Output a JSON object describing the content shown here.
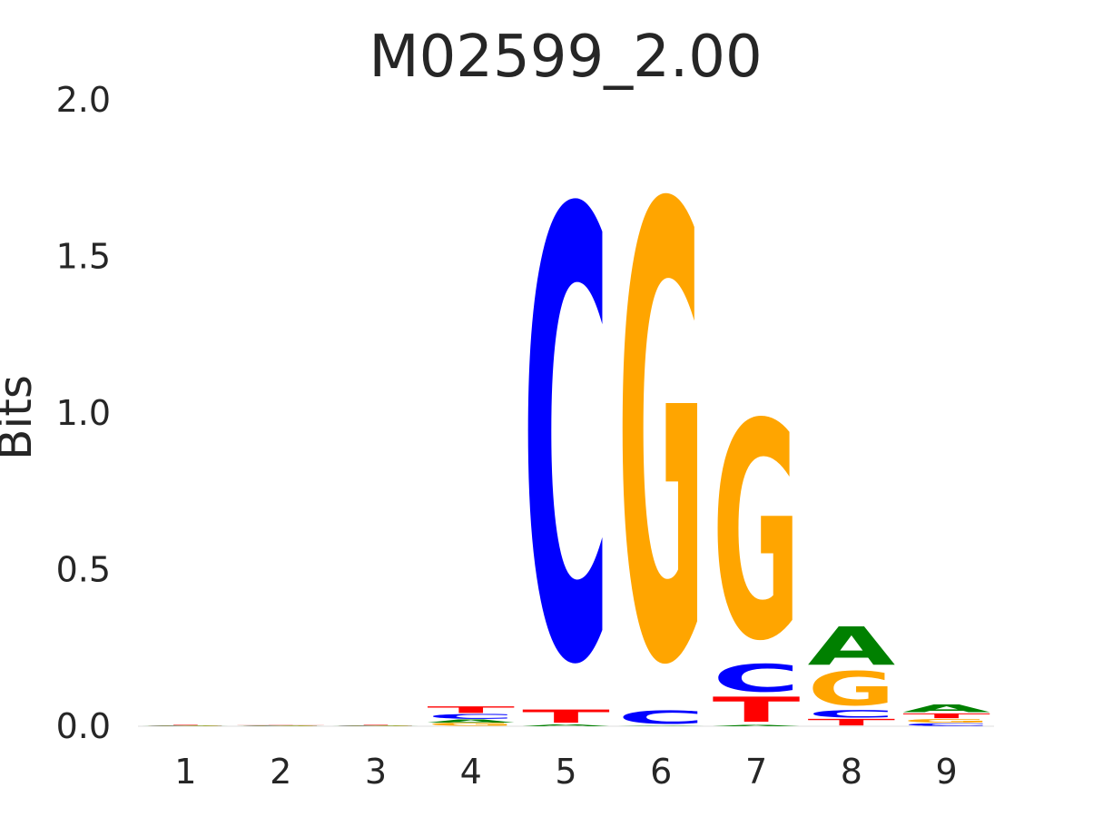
{
  "chart_data": {
    "type": "sequence-logo",
    "title": "M02599_2.00",
    "ylabel": "Bits",
    "xlabel": "",
    "ylim": [
      0,
      2
    ],
    "yticks": [
      "0.0",
      "0.5",
      "1.0",
      "1.5",
      "2.0"
    ],
    "grid": false,
    "colors": {
      "A": "#008000",
      "C": "#0000ff",
      "G": "#ffa500",
      "T": "#ff0000"
    },
    "positions": [
      {
        "label": "1",
        "letters": [
          {
            "base": "A",
            "bits": 0.001
          },
          {
            "base": "C",
            "bits": 0.001
          },
          {
            "base": "G",
            "bits": 0.001
          },
          {
            "base": "T",
            "bits": 0.002
          }
        ]
      },
      {
        "label": "2",
        "letters": [
          {
            "base": "A",
            "bits": 0.001
          },
          {
            "base": "C",
            "bits": 0.001
          },
          {
            "base": "G",
            "bits": 0.001
          },
          {
            "base": "T",
            "bits": 0.001
          }
        ]
      },
      {
        "label": "3",
        "letters": [
          {
            "base": "A",
            "bits": 0.001
          },
          {
            "base": "C",
            "bits": 0.001
          },
          {
            "base": "G",
            "bits": 0.001
          },
          {
            "base": "T",
            "bits": 0.002
          }
        ]
      },
      {
        "label": "4",
        "letters": [
          {
            "base": "G",
            "bits": 0.01
          },
          {
            "base": "A",
            "bits": 0.012
          },
          {
            "base": "C",
            "bits": 0.018
          },
          {
            "base": "T",
            "bits": 0.025
          }
        ]
      },
      {
        "label": "5",
        "letters": [
          {
            "base": "A",
            "bits": 0.006
          },
          {
            "base": "T",
            "bits": 0.05
          },
          {
            "base": "C",
            "bits": 1.7
          }
        ]
      },
      {
        "label": "6",
        "letters": [
          {
            "base": "A",
            "bits": 0.003
          },
          {
            "base": "C",
            "bits": 0.05
          },
          {
            "base": "G",
            "bits": 1.72
          }
        ]
      },
      {
        "label": "7",
        "letters": [
          {
            "base": "A",
            "bits": 0.005
          },
          {
            "base": "T",
            "bits": 0.095
          },
          {
            "base": "C",
            "bits": 0.105
          },
          {
            "base": "G",
            "bits": 0.82
          }
        ]
      },
      {
        "label": "8",
        "letters": [
          {
            "base": "T",
            "bits": 0.025
          },
          {
            "base": "C",
            "bits": 0.028
          },
          {
            "base": "G",
            "bits": 0.13
          },
          {
            "base": "A",
            "bits": 0.145
          }
        ]
      },
      {
        "label": "9",
        "letters": [
          {
            "base": "C",
            "bits": 0.01
          },
          {
            "base": "G",
            "bits": 0.014
          },
          {
            "base": "T",
            "bits": 0.018
          },
          {
            "base": "A",
            "bits": 0.028
          }
        ]
      }
    ]
  }
}
